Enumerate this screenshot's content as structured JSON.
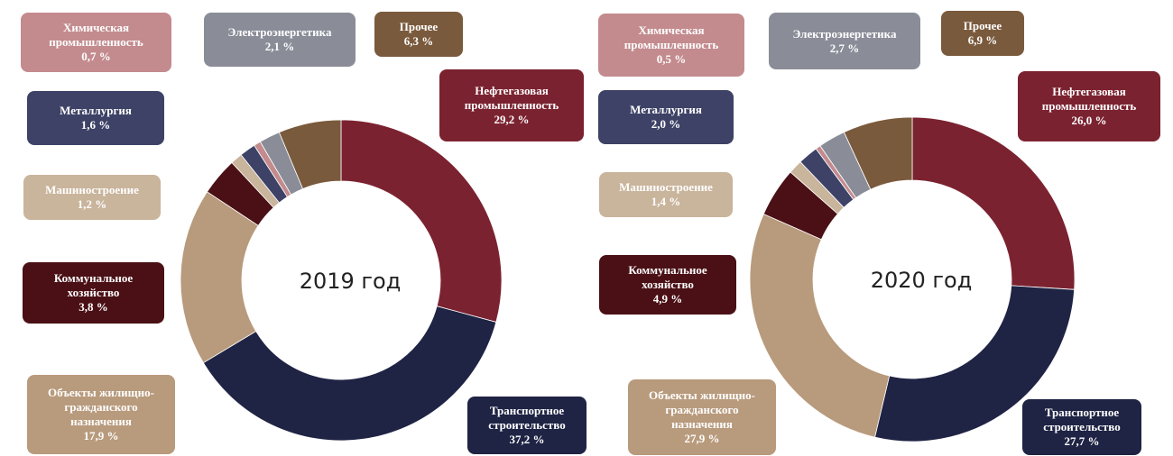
{
  "chart_data": [
    {
      "type": "pie",
      "title": "2019 год",
      "categories": [
        "Нефтегазовая промышленность",
        "Транспортное строительство",
        "Объекты жилищно-гражданского назначения",
        "Коммунальное хозяйство",
        "Машиностроение",
        "Металлургия",
        "Химическая промышленность",
        "Электроэнергетика",
        "Прочее"
      ],
      "values": [
        29.2,
        37.2,
        17.9,
        3.8,
        1.2,
        1.6,
        0.7,
        2.1,
        6.3
      ],
      "value_labels": [
        "29,2 %",
        "37,2 %",
        "17,9 %",
        "3,8 %",
        "1,2 %",
        "1,6 %",
        "0,7 %",
        "2,1 %",
        "6,3 %"
      ],
      "colors": [
        "#7b2230",
        "#1f2344",
        "#b89a7c",
        "#4a1015",
        "#c9b49c",
        "#3d4266",
        "#c38b8e",
        "#8a8d98",
        "#7a5a3c"
      ]
    },
    {
      "type": "pie",
      "title": "2020 год",
      "categories": [
        "Нефтегазовая промышленность",
        "Транспортное строительство",
        "Объекты жилищно-гражданского назначения",
        "Коммунальное хозяйство",
        "Машиностроение",
        "Металлургия",
        "Химическая промышленность",
        "Электроэнергетика",
        "Прочее"
      ],
      "values": [
        26.0,
        27.7,
        27.9,
        4.9,
        1.4,
        2.0,
        0.5,
        2.7,
        6.9
      ],
      "value_labels": [
        "26,0 %",
        "27,7 %",
        "27,9 %",
        "4,9 %",
        "1,4 %",
        "2,0 %",
        "0,5 %",
        "2,7 %",
        "6,9 %"
      ],
      "colors": [
        "#7b2230",
        "#1f2344",
        "#b89a7c",
        "#4a1015",
        "#c9b49c",
        "#3d4266",
        "#c38b8e",
        "#8a8d98",
        "#7a5a3c"
      ]
    }
  ]
}
